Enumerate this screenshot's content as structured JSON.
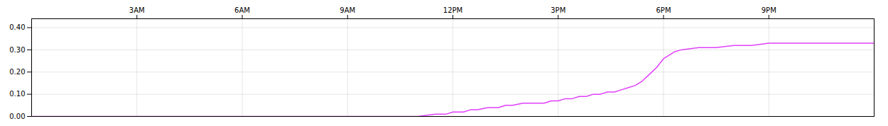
{
  "chart_data": {
    "type": "line",
    "color": "#e040fb",
    "grid": true,
    "xlim": [
      0,
      24
    ],
    "xticks": [
      {
        "value": 3,
        "label": "3AM"
      },
      {
        "value": 6,
        "label": "6AM"
      },
      {
        "value": 9,
        "label": "9AM"
      },
      {
        "value": 12,
        "label": "12PM"
      },
      {
        "value": 15,
        "label": "3PM"
      },
      {
        "value": 18,
        "label": "6PM"
      },
      {
        "value": 21,
        "label": "9PM"
      }
    ],
    "ylim": [
      0.0,
      0.44
    ],
    "yticks": [
      {
        "value": 0.0,
        "label": "0.00"
      },
      {
        "value": 0.1,
        "label": "0.10"
      },
      {
        "value": 0.2,
        "label": "0.20"
      },
      {
        "value": 0.3,
        "label": "0.30"
      },
      {
        "value": 0.4,
        "label": "0.40"
      }
    ],
    "x": [
      0,
      0.5,
      1,
      1.5,
      2,
      2.5,
      3,
      3.5,
      4,
      4.5,
      5,
      5.5,
      6,
      6.5,
      7,
      7.5,
      8,
      8.5,
      9,
      9.5,
      10,
      10.5,
      11,
      11.5,
      11.8,
      12,
      12.3,
      12.5,
      12.7,
      13,
      13.3,
      13.5,
      13.7,
      14,
      14.2,
      14.4,
      14.6,
      14.8,
      15,
      15.2,
      15.4,
      15.6,
      15.8,
      16,
      16.2,
      16.4,
      16.6,
      16.8,
      17,
      17.2,
      17.4,
      17.6,
      17.8,
      18,
      18.3,
      18.5,
      19,
      19.5,
      20,
      20.5,
      21,
      21.5,
      22,
      22.5,
      23,
      23.5,
      24
    ],
    "values": [
      0.0,
      0.0,
      0.0,
      0.0,
      0.0,
      0.0,
      0.0,
      0.0,
      0.0,
      0.0,
      0.0,
      0.0,
      0.0,
      0.0,
      0.0,
      0.0,
      0.0,
      0.0,
      0.0,
      0.0,
      0.0,
      0.0,
      0.0,
      0.01,
      0.01,
      0.02,
      0.02,
      0.03,
      0.03,
      0.04,
      0.04,
      0.05,
      0.05,
      0.06,
      0.06,
      0.06,
      0.06,
      0.07,
      0.07,
      0.08,
      0.08,
      0.09,
      0.09,
      0.1,
      0.1,
      0.11,
      0.11,
      0.12,
      0.13,
      0.14,
      0.16,
      0.19,
      0.22,
      0.26,
      0.29,
      0.3,
      0.31,
      0.31,
      0.32,
      0.32,
      0.33,
      0.33,
      0.33,
      0.33,
      0.33,
      0.33,
      0.33
    ]
  }
}
